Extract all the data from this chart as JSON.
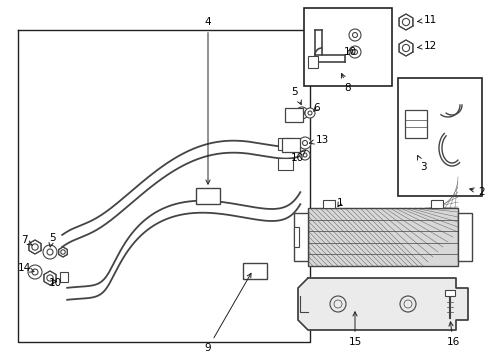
{
  "bg_color": "#ffffff",
  "line_color": "#444444",
  "border_color": "#222222",
  "text_color": "#000000",
  "fig_width": 4.89,
  "fig_height": 3.6,
  "dpi": 100
}
